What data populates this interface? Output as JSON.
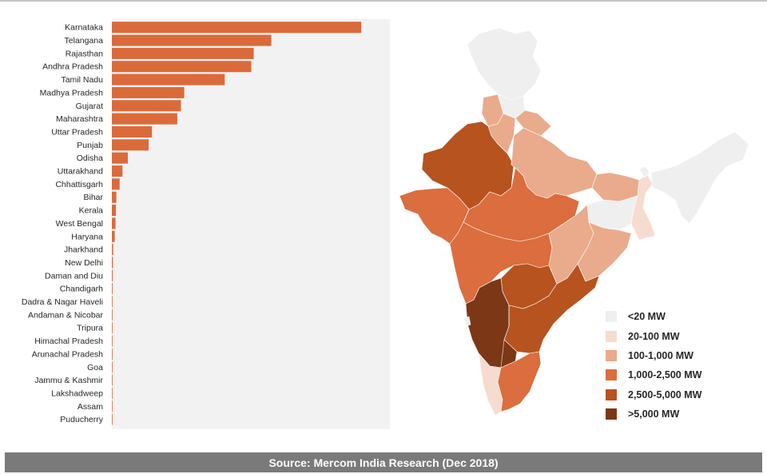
{
  "chart_data": {
    "type": "bar",
    "orientation": "horizontal",
    "categories": [
      "Karnataka",
      "Telangana",
      "Rajasthan",
      "Andhra Pradesh",
      "Tamil Nadu",
      "Madhya Pradesh",
      "Gujarat",
      "Maharashtra",
      "Uttar Pradesh",
      "Punjab",
      "Odisha",
      "Uttarakhand",
      "Chhattisgarh",
      "Bihar",
      "Kerala",
      "West Bengal",
      "Haryana",
      "Jharkhand",
      "New Delhi",
      "Daman and Diu",
      "Chandigarh",
      "Dadra & Nagar Haveli",
      "Andaman & Nicobar",
      "Tripura",
      "Himachal Pradesh",
      "Arunachal Pradesh",
      "Goa",
      "Jammu & Kashmir",
      "Lakshadweep",
      "Assam",
      "Puducherry"
    ],
    "values": [
      6100,
      3900,
      3470,
      3410,
      2760,
      1770,
      1690,
      1600,
      980,
      900,
      390,
      260,
      190,
      110,
      100,
      90,
      70,
      30,
      25,
      20,
      17,
      14,
      12,
      10,
      8,
      6,
      4,
      3,
      2,
      2,
      1
    ],
    "bar_color": "#db6a3b",
    "plot_background": "#f2f2f2",
    "xlim": [
      0,
      6800
    ],
    "title": "",
    "xlabel": "",
    "ylabel": ""
  },
  "legend": {
    "items": [
      {
        "label": "<20 MW",
        "color": "#efefef"
      },
      {
        "label": "20-100 MW",
        "color": "#f6dccf"
      },
      {
        "label": "100-1,000 MW",
        "color": "#eaaa8c"
      },
      {
        "label": "1,000-2,500 MW",
        "color": "#db6d3e"
      },
      {
        "label": "2,500-5,000 MW",
        "color": "#b7531f"
      },
      {
        "label": ">5,000 MW",
        "color": "#7c3716"
      }
    ]
  },
  "map": {
    "category_colors": {
      "lt20": "#efefef",
      "c20_100": "#f6dccf",
      "c100_1000": "#eaaa8c",
      "c1000_2500": "#db6d3e",
      "c2500_5000": "#b7531f",
      "gt5000": "#7c3716"
    }
  },
  "footer": {
    "source": "Source: Mercom India Research (Dec 2018)"
  }
}
